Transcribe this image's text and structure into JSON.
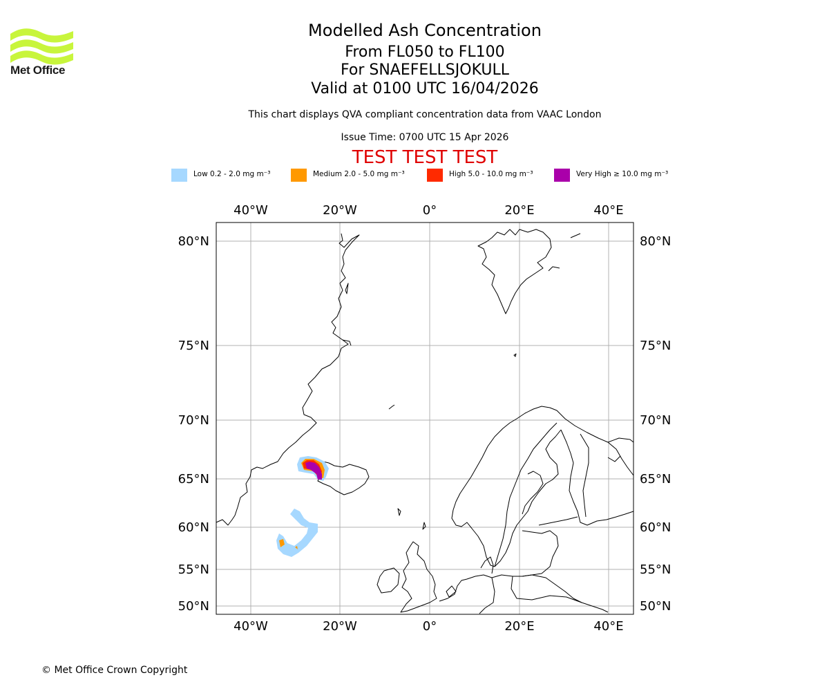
{
  "logo": {
    "name": "Met Office",
    "color": "#c8f53c"
  },
  "title": {
    "main": "Modelled Ash Concentration",
    "levels": "From FL050 to FL100",
    "volcano": "For SNAEFELLSJOKULL",
    "valid": "Valid at 0100 UTC 16/04/2026"
  },
  "subtitle": "This chart displays QVA compliant concentration data from VAAC London",
  "issue_time": "Issue Time: 0700 UTC 15 Apr 2026",
  "test_banner": "TEST TEST TEST",
  "legend": [
    {
      "label": "Low 0.2 - 2.0 mg m⁻³",
      "color": "#a6d8ff"
    },
    {
      "label": "Medium 2.0 - 5.0 mg m⁻³",
      "color": "#ff9900"
    },
    {
      "label": "High 5.0 - 10.0 mg m⁻³",
      "color": "#ff2a00"
    },
    {
      "label": "Very High  ≥  10.0 mg m⁻³",
      "color": "#aa00aa"
    }
  ],
  "map": {
    "lon_labels": [
      "40°W",
      "20°W",
      "0°",
      "20°E",
      "40°E"
    ],
    "lat_labels": [
      "80°N",
      "75°N",
      "70°N",
      "65°N",
      "60°N",
      "55°N",
      "50°N"
    ],
    "grid_color": "#b0b0b0"
  },
  "copyright": "© Met Office Crown Copyright"
}
